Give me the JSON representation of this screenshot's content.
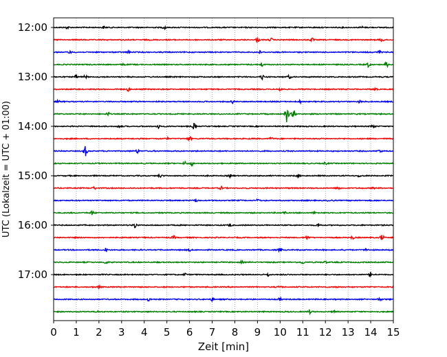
{
  "chart_data": {
    "type": "line",
    "title": "",
    "xlabel": "Zeit  [min]",
    "ylabel": "UTC (Lokalzeit = UTC + 01:00)",
    "xlim": [
      0,
      15
    ],
    "x_ticks": [
      "0",
      "1",
      "2",
      "3",
      "4",
      "5",
      "6",
      "7",
      "8",
      "9",
      "10",
      "11",
      "12",
      "13",
      "14",
      "15"
    ],
    "y_tick_labels": [
      "12:00",
      "13:00",
      "14:00",
      "15:00",
      "16:00",
      "17:00"
    ],
    "y_tick_rows": [
      0,
      4,
      8,
      12,
      16,
      20
    ],
    "grid": "vertical dotted at each minute",
    "color_cycle": [
      "#000000",
      "#ff0000",
      "#0000ff",
      "#008000"
    ],
    "traces": [
      {
        "start": "12:00",
        "events": [
          [
            0.6,
            0.8
          ],
          [
            2.2,
            0.7
          ],
          [
            4.9,
            1.0
          ],
          [
            13.6,
            0.6
          ]
        ]
      },
      {
        "start": "12:15",
        "events": [
          [
            9.0,
            1.5
          ],
          [
            9.6,
            1.0
          ],
          [
            11.4,
            1.0
          ],
          [
            14.5,
            1.2
          ]
        ]
      },
      {
        "start": "12:30",
        "events": [
          [
            0.7,
            0.7
          ],
          [
            3.3,
            0.8
          ],
          [
            9.1,
            0.8
          ],
          [
            14.4,
            1.3
          ]
        ]
      },
      {
        "start": "12:45",
        "events": [
          [
            3.1,
            0.7
          ],
          [
            9.2,
            1.4
          ],
          [
            13.9,
            1.4
          ],
          [
            14.7,
            1.6
          ]
        ]
      },
      {
        "start": "13:00",
        "events": [
          [
            1.0,
            1.2
          ],
          [
            1.4,
            0.9
          ],
          [
            9.2,
            1.6
          ],
          [
            10.4,
            1.0
          ]
        ]
      },
      {
        "start": "13:15",
        "events": [
          [
            3.3,
            1.1
          ],
          [
            10.0,
            1.1
          ],
          [
            14.2,
            1.0
          ]
        ]
      },
      {
        "start": "13:30",
        "events": [
          [
            0.2,
            0.7
          ],
          [
            7.9,
            0.9
          ],
          [
            10.9,
            0.8
          ],
          [
            13.5,
            0.7
          ]
        ]
      },
      {
        "start": "13:45",
        "events": [
          [
            2.4,
            1.2
          ],
          [
            10.3,
            5.5
          ],
          [
            10.6,
            3.0
          ]
        ]
      },
      {
        "start": "14:00",
        "events": [
          [
            2.9,
            0.8
          ],
          [
            4.6,
            1.4
          ],
          [
            6.2,
            1.8
          ],
          [
            14.1,
            1.0
          ]
        ]
      },
      {
        "start": "14:15",
        "events": [
          [
            5.0,
            0.7
          ],
          [
            6.0,
            1.5
          ],
          [
            9.6,
            0.8
          ]
        ]
      },
      {
        "start": "14:30",
        "events": [
          [
            1.4,
            3.3
          ],
          [
            3.7,
            1.2
          ],
          [
            14.4,
            0.8
          ]
        ]
      },
      {
        "start": "14:45",
        "events": [
          [
            5.8,
            1.1
          ],
          [
            6.1,
            1.2
          ],
          [
            12.0,
            0.7
          ]
        ]
      },
      {
        "start": "15:00",
        "events": [
          [
            4.7,
            0.9
          ],
          [
            7.8,
            0.8
          ],
          [
            10.8,
            0.8
          ],
          [
            13.5,
            0.8
          ]
        ]
      },
      {
        "start": "15:15",
        "events": [
          [
            1.8,
            0.9
          ],
          [
            7.4,
            0.9
          ],
          [
            12.6,
            0.8
          ],
          [
            14.1,
            0.7
          ]
        ]
      },
      {
        "start": "15:30",
        "events": [
          [
            6.3,
            1.1
          ],
          [
            9.0,
            0.7
          ],
          [
            12.2,
            0.7
          ]
        ]
      },
      {
        "start": "15:45",
        "events": [
          [
            1.7,
            1.2
          ],
          [
            10.2,
            0.8
          ],
          [
            11.5,
            0.8
          ]
        ]
      },
      {
        "start": "16:00",
        "events": [
          [
            3.6,
            2.0
          ],
          [
            7.8,
            1.0
          ],
          [
            11.7,
            1.3
          ]
        ]
      },
      {
        "start": "16:15",
        "events": [
          [
            5.3,
            1.0
          ],
          [
            11.2,
            1.3
          ],
          [
            13.2,
            1.0
          ],
          [
            14.5,
            2.0
          ]
        ]
      },
      {
        "start": "16:30",
        "events": [
          [
            2.3,
            1.2
          ],
          [
            6.0,
            0.8
          ],
          [
            10.0,
            1.1
          ],
          [
            13.8,
            0.8
          ]
        ]
      },
      {
        "start": "16:45",
        "events": [
          [
            2.3,
            1.0
          ],
          [
            8.3,
            0.8
          ],
          [
            11.0,
            1.0
          ],
          [
            12.0,
            0.7
          ]
        ]
      },
      {
        "start": "17:00",
        "events": [
          [
            5.8,
            0.9
          ],
          [
            9.5,
            1.0
          ],
          [
            14.0,
            1.6
          ]
        ]
      },
      {
        "start": "17:15",
        "events": [
          [
            2.0,
            0.7
          ],
          [
            10.0,
            0.7
          ],
          [
            12.5,
            0.6
          ]
        ]
      },
      {
        "start": "17:30",
        "events": [
          [
            4.2,
            1.1
          ],
          [
            7.0,
            1.0
          ],
          [
            10.0,
            0.9
          ],
          [
            14.4,
            1.0
          ]
        ]
      },
      {
        "start": "17:45",
        "events": [
          [
            1.9,
            0.7
          ],
          [
            11.3,
            1.2
          ],
          [
            12.4,
            0.6
          ]
        ]
      }
    ]
  }
}
